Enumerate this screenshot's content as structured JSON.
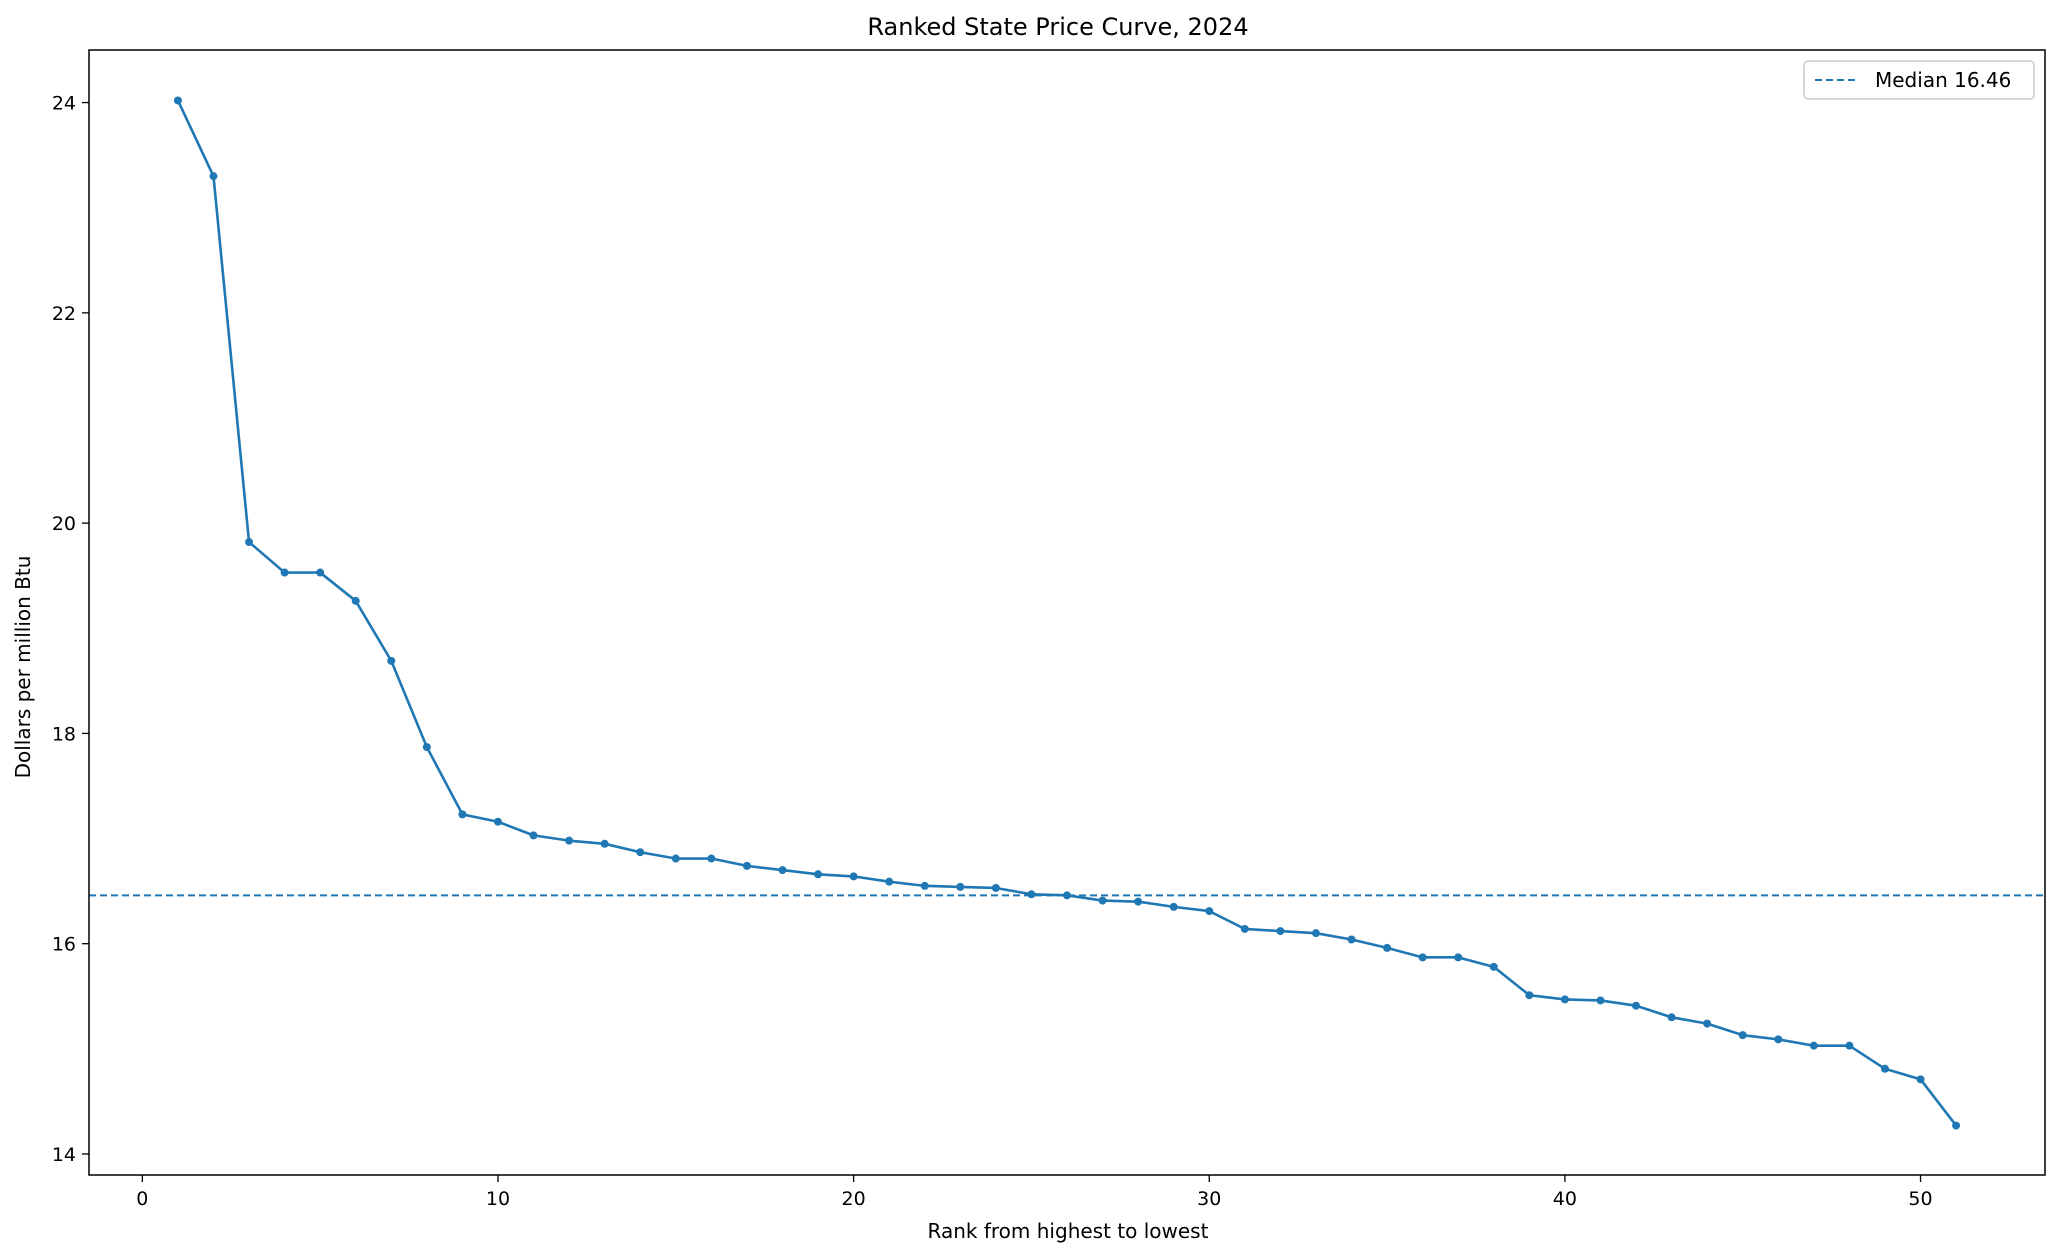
{
  "chart_data": {
    "type": "line",
    "title": "Ranked State Price Curve, 2024",
    "xlabel": "Rank from highest to lowest",
    "ylabel": "Dollars per million Btu",
    "xlim": [
      -1.5,
      53.5
    ],
    "ylim": [
      13.8,
      24.5
    ],
    "xticks": [
      0,
      10,
      20,
      30,
      40,
      50
    ],
    "yticks": [
      14,
      16,
      18,
      20,
      22,
      24
    ],
    "grid": false,
    "legend_position": "top-right",
    "colors": {
      "series": "#1f77b4"
    },
    "series": [
      {
        "x": [
          1,
          2,
          3,
          4,
          5,
          6,
          7,
          8,
          9,
          10,
          11,
          12,
          13,
          14,
          15,
          16,
          17,
          18,
          19,
          20,
          21,
          22,
          23,
          24,
          25,
          26,
          27,
          28,
          29,
          30,
          31,
          32,
          33,
          34,
          35,
          36,
          37,
          38,
          39,
          40,
          41,
          42,
          43,
          44,
          45,
          46,
          47,
          48,
          49,
          50,
          51
        ],
        "values": [
          24.02,
          23.3,
          19.82,
          19.53,
          19.53,
          19.26,
          18.69,
          17.87,
          17.23,
          17.16,
          17.03,
          16.98,
          16.95,
          16.87,
          16.81,
          16.81,
          16.74,
          16.7,
          16.66,
          16.64,
          16.59,
          16.55,
          16.54,
          16.53,
          16.47,
          16.46,
          16.41,
          16.4,
          16.35,
          16.31,
          16.14,
          16.12,
          16.1,
          16.04,
          15.96,
          15.87,
          15.87,
          15.78,
          15.51,
          15.47,
          15.46,
          15.41,
          15.3,
          15.24,
          15.13,
          15.09,
          15.03,
          15.03,
          14.81,
          14.71,
          14.27
        ]
      }
    ],
    "reference_lines": [
      {
        "axis": "y",
        "value": 16.46,
        "style": "dashed",
        "label": "Median 16.46"
      }
    ]
  }
}
